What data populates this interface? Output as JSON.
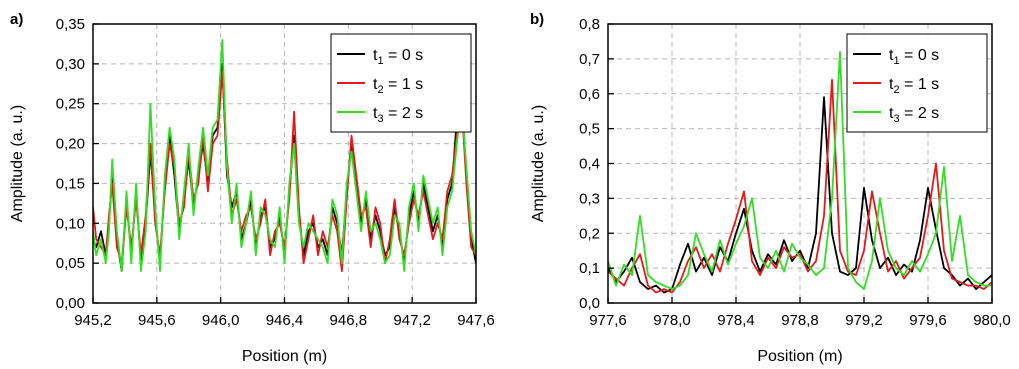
{
  "chart_data": [
    {
      "type": "line",
      "panel_label": "a)",
      "xlabel": "Position (m)",
      "ylabel": "Amplitude (a. u.)",
      "xlim": [
        945.2,
        947.6
      ],
      "ylim": [
        0.0,
        0.35
      ],
      "xticks": [
        945.2,
        945.6,
        946.0,
        946.4,
        946.8,
        947.2,
        947.6
      ],
      "xtick_labels": [
        "945,2",
        "945,6",
        "946,0",
        "946,4",
        "946,8",
        "947,2",
        "947,6"
      ],
      "yticks": [
        0.0,
        0.05,
        0.1,
        0.15,
        0.2,
        0.25,
        0.3,
        0.35
      ],
      "ytick_labels": [
        "0,00",
        "0,05",
        "0,10",
        "0,15",
        "0,20",
        "0,25",
        "0,30",
        "0,35"
      ],
      "grid": true,
      "legend_position": "top-right",
      "series": [
        {
          "name": "t1 = 0 s",
          "legend_base": "t",
          "legend_sub": "1",
          "legend_rest": " = 0 s",
          "color": "#000000",
          "x": [
            945.2,
            945.22,
            945.25,
            945.28,
            945.3,
            945.32,
            945.35,
            945.38,
            945.41,
            945.44,
            945.47,
            945.5,
            945.53,
            945.56,
            945.59,
            945.62,
            945.65,
            945.68,
            945.71,
            945.74,
            945.77,
            945.8,
            945.83,
            945.86,
            945.89,
            945.92,
            945.95,
            945.98,
            946.01,
            946.04,
            946.07,
            946.1,
            946.13,
            946.16,
            946.19,
            946.22,
            946.25,
            946.28,
            946.31,
            946.34,
            946.37,
            946.4,
            946.43,
            946.46,
            946.49,
            946.52,
            946.55,
            946.58,
            946.61,
            946.64,
            946.67,
            946.7,
            946.73,
            946.76,
            946.79,
            946.82,
            946.85,
            946.88,
            946.91,
            946.94,
            946.97,
            947.0,
            947.03,
            947.06,
            947.09,
            947.12,
            947.15,
            947.18,
            947.21,
            947.24,
            947.27,
            947.3,
            947.33,
            947.36,
            947.39,
            947.42,
            947.45,
            947.48,
            947.51,
            947.54,
            947.57,
            947.6
          ],
          "y": [
            0.08,
            0.07,
            0.09,
            0.06,
            0.1,
            0.16,
            0.08,
            0.04,
            0.13,
            0.06,
            0.14,
            0.05,
            0.1,
            0.19,
            0.11,
            0.05,
            0.15,
            0.21,
            0.16,
            0.09,
            0.13,
            0.18,
            0.12,
            0.16,
            0.2,
            0.15,
            0.21,
            0.22,
            0.3,
            0.16,
            0.12,
            0.14,
            0.08,
            0.1,
            0.13,
            0.07,
            0.11,
            0.12,
            0.07,
            0.08,
            0.11,
            0.06,
            0.14,
            0.21,
            0.11,
            0.06,
            0.09,
            0.1,
            0.07,
            0.08,
            0.06,
            0.12,
            0.1,
            0.06,
            0.14,
            0.2,
            0.15,
            0.1,
            0.13,
            0.08,
            0.11,
            0.09,
            0.06,
            0.07,
            0.12,
            0.09,
            0.05,
            0.11,
            0.14,
            0.1,
            0.15,
            0.12,
            0.09,
            0.11,
            0.07,
            0.13,
            0.15,
            0.23,
            0.26,
            0.16,
            0.08,
            0.05
          ]
        },
        {
          "name": "t2 = 1 s",
          "legend_base": "t",
          "legend_sub": "2",
          "legend_rest": " = 1 s",
          "color": "#e31a1c",
          "x": [
            945.2,
            945.22,
            945.25,
            945.28,
            945.3,
            945.32,
            945.35,
            945.38,
            945.41,
            945.44,
            945.47,
            945.5,
            945.53,
            945.56,
            945.59,
            945.62,
            945.65,
            945.68,
            945.71,
            945.74,
            945.77,
            945.8,
            945.83,
            945.86,
            945.89,
            945.92,
            945.95,
            945.98,
            946.01,
            946.04,
            946.07,
            946.1,
            946.13,
            946.16,
            946.19,
            946.22,
            946.25,
            946.28,
            946.31,
            946.34,
            946.37,
            946.4,
            946.43,
            946.46,
            946.49,
            946.52,
            946.55,
            946.58,
            946.61,
            946.64,
            946.67,
            946.7,
            946.73,
            946.76,
            946.79,
            946.82,
            946.85,
            946.88,
            946.91,
            946.94,
            946.97,
            947.0,
            947.03,
            947.06,
            947.09,
            947.12,
            947.15,
            947.18,
            947.21,
            947.24,
            947.27,
            947.3,
            947.33,
            947.36,
            947.39,
            947.42,
            947.45,
            947.48,
            947.51,
            947.54,
            947.57,
            947.6
          ],
          "y": [
            0.12,
            0.08,
            0.07,
            0.06,
            0.11,
            0.15,
            0.07,
            0.05,
            0.12,
            0.07,
            0.13,
            0.06,
            0.11,
            0.2,
            0.1,
            0.06,
            0.14,
            0.2,
            0.17,
            0.1,
            0.12,
            0.19,
            0.13,
            0.15,
            0.21,
            0.14,
            0.2,
            0.21,
            0.29,
            0.18,
            0.11,
            0.13,
            0.09,
            0.11,
            0.12,
            0.08,
            0.1,
            0.13,
            0.06,
            0.09,
            0.1,
            0.07,
            0.13,
            0.24,
            0.12,
            0.05,
            0.08,
            0.11,
            0.06,
            0.09,
            0.07,
            0.11,
            0.09,
            0.04,
            0.13,
            0.21,
            0.16,
            0.11,
            0.12,
            0.07,
            0.12,
            0.1,
            0.05,
            0.08,
            0.13,
            0.08,
            0.06,
            0.1,
            0.13,
            0.11,
            0.14,
            0.11,
            0.08,
            0.1,
            0.08,
            0.14,
            0.16,
            0.21,
            0.25,
            0.15,
            0.07,
            0.06
          ]
        },
        {
          "name": "t3 = 2 s",
          "legend_base": "t",
          "legend_sub": "3",
          "legend_rest": " = 2 s",
          "color": "#33dd22",
          "x": [
            945.2,
            945.22,
            945.25,
            945.28,
            945.3,
            945.32,
            945.35,
            945.38,
            945.41,
            945.44,
            945.47,
            945.5,
            945.53,
            945.56,
            945.59,
            945.62,
            945.65,
            945.68,
            945.71,
            945.74,
            945.77,
            945.8,
            945.83,
            945.86,
            945.89,
            945.92,
            945.95,
            945.98,
            946.01,
            946.04,
            946.07,
            946.1,
            946.13,
            946.16,
            946.19,
            946.22,
            946.25,
            946.28,
            946.31,
            946.34,
            946.37,
            946.4,
            946.43,
            946.46,
            946.49,
            946.52,
            946.55,
            946.58,
            946.61,
            946.64,
            946.67,
            946.7,
            946.73,
            946.76,
            946.79,
            946.82,
            946.85,
            946.88,
            946.91,
            946.94,
            946.97,
            947.0,
            947.03,
            947.06,
            947.09,
            947.12,
            947.15,
            947.18,
            947.21,
            947.24,
            947.27,
            947.3,
            947.33,
            947.36,
            947.39,
            947.42,
            947.45,
            947.48,
            947.51,
            947.54,
            947.57,
            947.6
          ],
          "y": [
            0.09,
            0.06,
            0.08,
            0.05,
            0.09,
            0.18,
            0.09,
            0.04,
            0.14,
            0.05,
            0.15,
            0.04,
            0.09,
            0.25,
            0.12,
            0.04,
            0.16,
            0.22,
            0.18,
            0.08,
            0.14,
            0.2,
            0.11,
            0.17,
            0.22,
            0.16,
            0.22,
            0.23,
            0.33,
            0.17,
            0.1,
            0.15,
            0.07,
            0.1,
            0.14,
            0.06,
            0.12,
            0.11,
            0.08,
            0.07,
            0.12,
            0.05,
            0.15,
            0.2,
            0.1,
            0.07,
            0.1,
            0.09,
            0.08,
            0.07,
            0.05,
            0.13,
            0.11,
            0.05,
            0.15,
            0.19,
            0.14,
            0.09,
            0.14,
            0.09,
            0.1,
            0.08,
            0.05,
            0.06,
            0.11,
            0.1,
            0.04,
            0.12,
            0.15,
            0.09,
            0.16,
            0.13,
            0.1,
            0.12,
            0.06,
            0.12,
            0.14,
            0.2,
            0.25,
            0.17,
            0.09,
            0.06
          ]
        }
      ]
    },
    {
      "type": "line",
      "panel_label": "b)",
      "xlabel": "Position (m)",
      "ylabel": "Amplitude (a. u.)",
      "xlim": [
        977.6,
        980.0
      ],
      "ylim": [
        0.0,
        0.8
      ],
      "xticks": [
        977.6,
        978.0,
        978.4,
        978.8,
        979.2,
        979.6,
        980.0
      ],
      "xtick_labels": [
        "977,6",
        "978,0",
        "978,4",
        "978,8",
        "979,2",
        "979,6",
        "980,0"
      ],
      "yticks": [
        0.0,
        0.1,
        0.2,
        0.3,
        0.4,
        0.5,
        0.6,
        0.7,
        0.8
      ],
      "ytick_labels": [
        "0,0",
        "0,1",
        "0,2",
        "0,3",
        "0,4",
        "0,5",
        "0,6",
        "0,7",
        "0,8"
      ],
      "grid": true,
      "legend_position": "top-right",
      "series": [
        {
          "name": "t1 = 0 s",
          "legend_base": "t",
          "legend_sub": "1",
          "legend_rest": " = 0 s",
          "color": "#000000",
          "x": [
            977.6,
            977.65,
            977.7,
            977.75,
            977.8,
            977.85,
            977.9,
            977.95,
            978.0,
            978.05,
            978.1,
            978.15,
            978.2,
            978.25,
            978.3,
            978.35,
            978.4,
            978.45,
            978.5,
            978.55,
            978.6,
            978.65,
            978.7,
            978.75,
            978.8,
            978.85,
            978.9,
            978.95,
            979.0,
            979.05,
            979.1,
            979.15,
            979.2,
            979.25,
            979.3,
            979.35,
            979.4,
            979.45,
            979.5,
            979.55,
            979.6,
            979.65,
            979.7,
            979.75,
            979.8,
            979.85,
            979.9,
            979.95,
            980.0
          ],
          "y": [
            0.1,
            0.06,
            0.09,
            0.13,
            0.06,
            0.04,
            0.05,
            0.03,
            0.04,
            0.11,
            0.17,
            0.09,
            0.13,
            0.08,
            0.16,
            0.12,
            0.2,
            0.27,
            0.15,
            0.09,
            0.14,
            0.11,
            0.18,
            0.12,
            0.15,
            0.1,
            0.2,
            0.59,
            0.2,
            0.09,
            0.08,
            0.1,
            0.33,
            0.18,
            0.1,
            0.13,
            0.08,
            0.11,
            0.09,
            0.18,
            0.33,
            0.21,
            0.1,
            0.08,
            0.05,
            0.07,
            0.04,
            0.06,
            0.08
          ]
        },
        {
          "name": "t2 = 1 s",
          "legend_base": "t",
          "legend_sub": "2",
          "legend_rest": " = 1 s",
          "color": "#e31a1c",
          "x": [
            977.6,
            977.65,
            977.7,
            977.75,
            977.8,
            977.85,
            977.9,
            977.95,
            978.0,
            978.05,
            978.1,
            978.15,
            978.2,
            978.25,
            978.3,
            978.35,
            978.4,
            978.45,
            978.5,
            978.55,
            978.6,
            978.65,
            978.7,
            978.75,
            978.8,
            978.85,
            978.9,
            978.95,
            979.0,
            979.05,
            979.1,
            979.15,
            979.2,
            979.25,
            979.3,
            979.35,
            979.4,
            979.45,
            979.5,
            979.55,
            979.6,
            979.65,
            979.7,
            979.75,
            979.8,
            979.85,
            979.9,
            979.95,
            980.0
          ],
          "y": [
            0.09,
            0.07,
            0.05,
            0.1,
            0.14,
            0.05,
            0.03,
            0.04,
            0.03,
            0.06,
            0.12,
            0.16,
            0.1,
            0.14,
            0.09,
            0.17,
            0.24,
            0.32,
            0.12,
            0.08,
            0.13,
            0.1,
            0.16,
            0.13,
            0.14,
            0.09,
            0.12,
            0.25,
            0.64,
            0.15,
            0.09,
            0.08,
            0.15,
            0.32,
            0.2,
            0.09,
            0.12,
            0.07,
            0.1,
            0.13,
            0.25,
            0.4,
            0.15,
            0.07,
            0.06,
            0.05,
            0.05,
            0.04,
            0.06
          ]
        },
        {
          "name": "t3 = 2 s",
          "legend_base": "t",
          "legend_sub": "3",
          "legend_rest": " = 2 s",
          "color": "#33dd22",
          "x": [
            977.6,
            977.65,
            977.7,
            977.75,
            977.8,
            977.85,
            977.9,
            977.95,
            978.0,
            978.05,
            978.1,
            978.15,
            978.2,
            978.25,
            978.3,
            978.35,
            978.4,
            978.45,
            978.5,
            978.55,
            978.6,
            978.65,
            978.7,
            978.75,
            978.8,
            978.85,
            978.9,
            978.95,
            979.0,
            979.05,
            979.1,
            979.15,
            979.2,
            979.25,
            979.3,
            979.35,
            979.4,
            979.45,
            979.5,
            979.55,
            979.6,
            979.65,
            979.7,
            979.75,
            979.8,
            979.85,
            979.9,
            979.95,
            980.0
          ],
          "y": [
            0.12,
            0.05,
            0.11,
            0.08,
            0.25,
            0.08,
            0.06,
            0.05,
            0.04,
            0.05,
            0.08,
            0.2,
            0.14,
            0.09,
            0.18,
            0.11,
            0.17,
            0.22,
            0.3,
            0.13,
            0.1,
            0.15,
            0.09,
            0.17,
            0.13,
            0.11,
            0.08,
            0.1,
            0.3,
            0.72,
            0.1,
            0.06,
            0.04,
            0.12,
            0.3,
            0.15,
            0.1,
            0.08,
            0.12,
            0.09,
            0.14,
            0.2,
            0.39,
            0.12,
            0.25,
            0.08,
            0.06,
            0.05,
            0.05
          ]
        }
      ]
    }
  ]
}
